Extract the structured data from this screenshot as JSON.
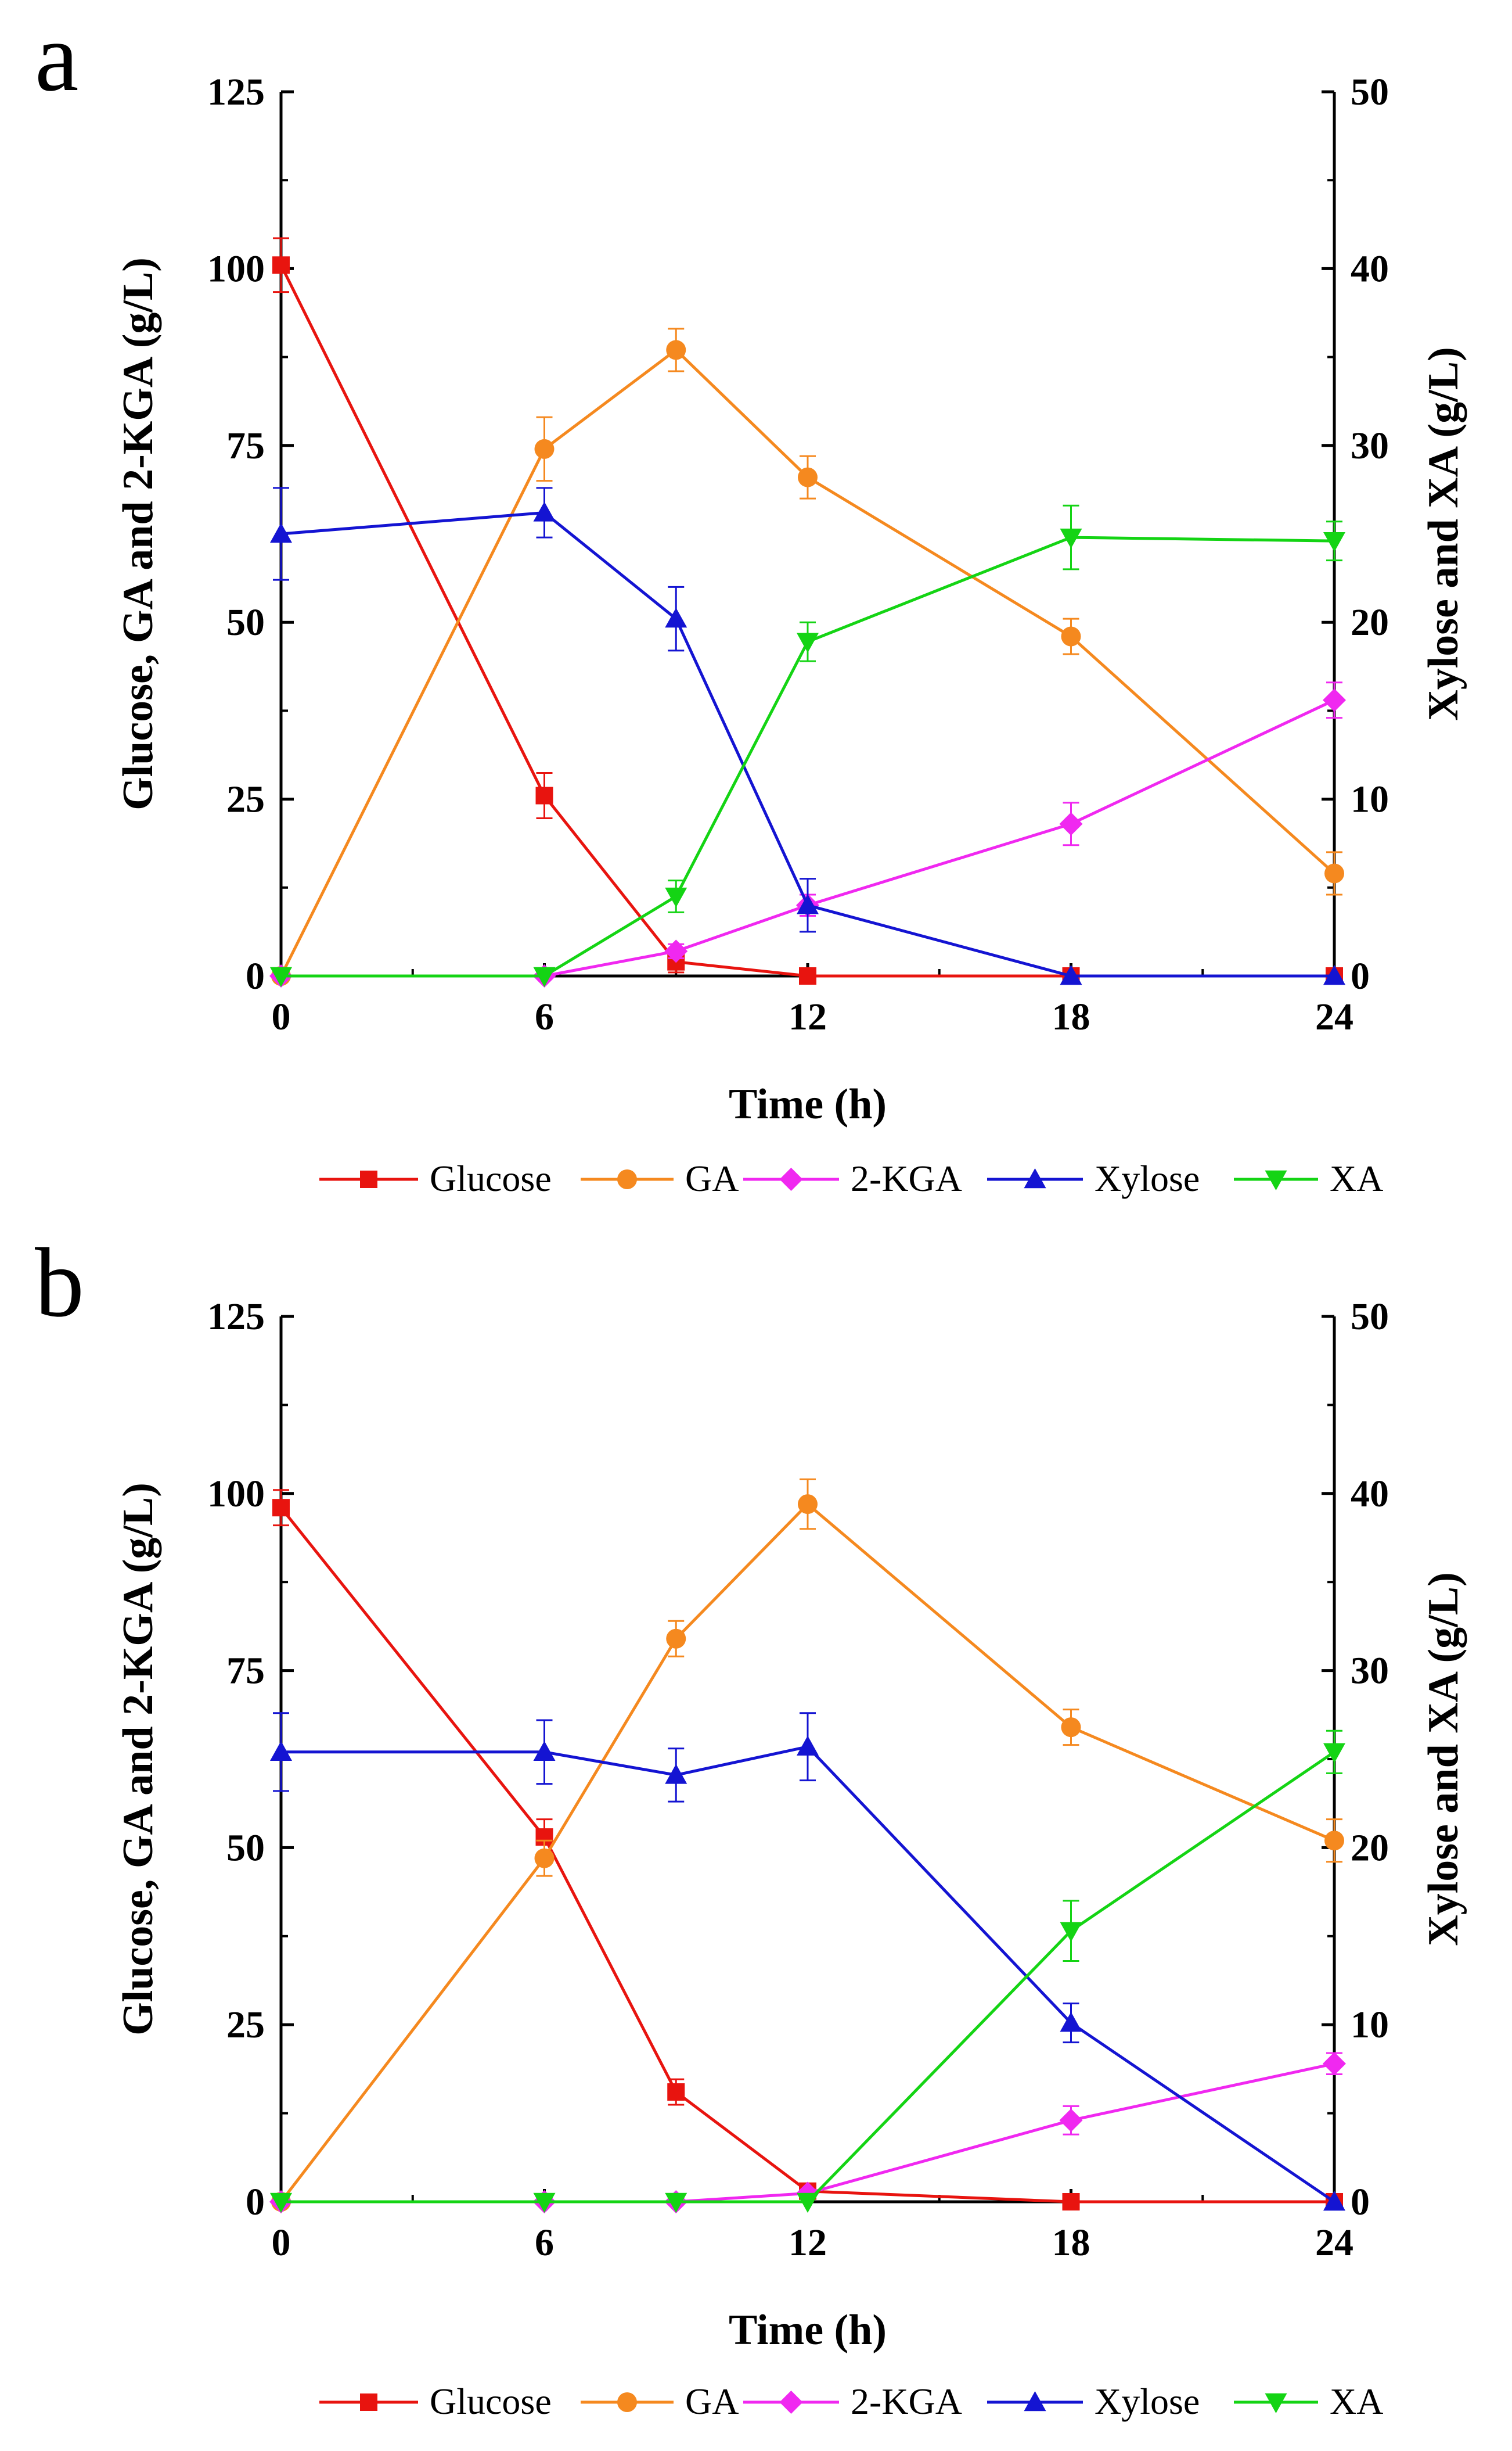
{
  "colors": {
    "Glucose": "#e8140f",
    "GA": "#f5891f",
    "2-KGA": "#f028f0",
    "Xylose": "#1414d2",
    "XA": "#14d414"
  },
  "chart_data": [
    {
      "type": "line",
      "panel_label": "a",
      "xlabel": "Time (h)",
      "ylabel_left": "Glucose, GA and 2-KGA (g/L)",
      "ylabel_right": "Xylose and XA (g/L)",
      "xlim": [
        0,
        24
      ],
      "ylim_left": [
        0,
        125
      ],
      "ylim_right": [
        0,
        50
      ],
      "xticks": [
        0,
        6,
        12,
        18,
        24
      ],
      "yticks_left": [
        0,
        25,
        50,
        75,
        100,
        125
      ],
      "yticks_right": [
        0,
        10,
        20,
        30,
        40,
        50
      ],
      "legend": [
        "Glucose",
        "GA",
        "2-KGA",
        "Xylose",
        "XA"
      ],
      "series": [
        {
          "name": "Glucose",
          "axis": "left",
          "marker": "square",
          "x": [
            0,
            6,
            9,
            12,
            18,
            24
          ],
          "values": [
            100.5,
            25.5,
            2.0,
            0.0,
            0.0,
            0.0
          ],
          "err": [
            3.8,
            3.2,
            1.5,
            0,
            0,
            0
          ]
        },
        {
          "name": "GA",
          "axis": "left",
          "marker": "circle",
          "x": [
            0,
            6,
            9,
            12,
            18,
            24
          ],
          "values": [
            0.0,
            74.5,
            88.5,
            70.5,
            48.0,
            14.5
          ],
          "err": [
            0,
            4.5,
            3.0,
            3.0,
            2.5,
            3.0
          ]
        },
        {
          "name": "2-KGA",
          "axis": "left",
          "marker": "diamond",
          "x": [
            0,
            6,
            9,
            12,
            18,
            24
          ],
          "values": [
            0.0,
            0.0,
            3.5,
            10.0,
            21.5,
            39.0
          ],
          "err": [
            0,
            0,
            1.0,
            1.5,
            3.0,
            2.5
          ]
        },
        {
          "name": "Xylose",
          "axis": "right",
          "marker": "triangle-up",
          "x": [
            0,
            6,
            9,
            12,
            18,
            24
          ],
          "values": [
            25.0,
            26.2,
            20.2,
            4.0,
            0.0,
            0.0
          ],
          "err": [
            2.6,
            1.4,
            1.8,
            1.5,
            0,
            0
          ]
        },
        {
          "name": "XA",
          "axis": "right",
          "marker": "triangle-down",
          "x": [
            0,
            6,
            9,
            12,
            18,
            24
          ],
          "values": [
            0.0,
            0.0,
            4.5,
            18.9,
            24.8,
            24.6
          ],
          "err": [
            0,
            0,
            0.9,
            1.1,
            1.8,
            1.1
          ]
        }
      ]
    },
    {
      "type": "line",
      "panel_label": "b",
      "xlabel": "Time (h)",
      "ylabel_left": "Glucose, GA and 2-KGA (g/L)",
      "ylabel_right": "Xylose and XA (g/L)",
      "xlim": [
        0,
        24
      ],
      "ylim_left": [
        0,
        125
      ],
      "ylim_right": [
        0,
        50
      ],
      "xticks": [
        0,
        6,
        12,
        18,
        24
      ],
      "yticks_left": [
        0,
        25,
        50,
        75,
        100,
        125
      ],
      "yticks_right": [
        0,
        10,
        20,
        30,
        40,
        50
      ],
      "legend": [
        "Glucose",
        "GA",
        "2-KGA",
        "Xylose",
        "XA"
      ],
      "series": [
        {
          "name": "Glucose",
          "axis": "left",
          "marker": "square",
          "x": [
            0,
            6,
            9,
            12,
            18,
            24
          ],
          "values": [
            98.0,
            51.5,
            15.5,
            1.5,
            0.0,
            0.0
          ],
          "err": [
            2.5,
            2.5,
            1.8,
            0.8,
            0,
            0
          ]
        },
        {
          "name": "GA",
          "axis": "left",
          "marker": "circle",
          "x": [
            0,
            6,
            9,
            12,
            18,
            24
          ],
          "values": [
            0.0,
            48.5,
            79.5,
            98.5,
            67.0,
            51.0
          ],
          "err": [
            0,
            2.5,
            2.5,
            3.5,
            2.5,
            3.0
          ]
        },
        {
          "name": "2-KGA",
          "axis": "left",
          "marker": "diamond",
          "x": [
            0,
            6,
            9,
            12,
            18,
            24
          ],
          "values": [
            0.0,
            0.0,
            0.0,
            1.2,
            11.5,
            19.5
          ],
          "err": [
            0,
            0,
            0,
            0.5,
            2.0,
            1.5
          ]
        },
        {
          "name": "Xylose",
          "axis": "right",
          "marker": "triangle-up",
          "x": [
            0,
            6,
            9,
            12,
            18,
            24
          ],
          "values": [
            25.4,
            25.4,
            24.1,
            25.7,
            10.1,
            0.0
          ],
          "err": [
            2.2,
            1.8,
            1.5,
            1.9,
            1.1,
            0
          ]
        },
        {
          "name": "XA",
          "axis": "right",
          "marker": "triangle-down",
          "x": [
            0,
            6,
            9,
            12,
            18,
            24
          ],
          "values": [
            0.0,
            0.0,
            0.0,
            0.0,
            15.3,
            25.4
          ],
          "err": [
            0,
            0,
            0,
            0,
            1.7,
            1.2
          ]
        }
      ]
    }
  ]
}
